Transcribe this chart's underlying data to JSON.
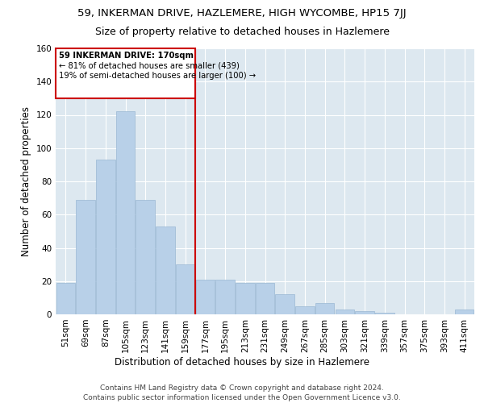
{
  "title1": "59, INKERMAN DRIVE, HAZLEMERE, HIGH WYCOMBE, HP15 7JJ",
  "title2": "Size of property relative to detached houses in Hazlemere",
  "xlabel": "Distribution of detached houses by size in Hazlemere",
  "ylabel": "Number of detached properties",
  "categories": [
    "51sqm",
    "69sqm",
    "87sqm",
    "105sqm",
    "123sqm",
    "141sqm",
    "159sqm",
    "177sqm",
    "195sqm",
    "213sqm",
    "231sqm",
    "249sqm",
    "267sqm",
    "285sqm",
    "303sqm",
    "321sqm",
    "339sqm",
    "357sqm",
    "375sqm",
    "393sqm",
    "411sqm"
  ],
  "values": [
    19,
    69,
    93,
    122,
    69,
    53,
    30,
    21,
    21,
    19,
    19,
    12,
    5,
    7,
    3,
    2,
    1,
    0,
    0,
    0,
    3
  ],
  "bar_color": "#b8d0e8",
  "bar_edge_color": "#9ab8d4",
  "vline_color": "#cc0000",
  "annotation_line1": "59 INKERMAN DRIVE: 170sqm",
  "annotation_line2": "← 81% of detached houses are smaller (439)",
  "annotation_line3": "19% of semi-detached houses are larger (100) →",
  "annotation_box_color": "#cc0000",
  "ylim": [
    0,
    160
  ],
  "yticks": [
    0,
    20,
    40,
    60,
    80,
    100,
    120,
    140,
    160
  ],
  "footer1": "Contains HM Land Registry data © Crown copyright and database right 2024.",
  "footer2": "Contains public sector information licensed under the Open Government Licence v3.0.",
  "bg_color": "#dde8f0",
  "grid_color": "#ffffff",
  "title1_fontsize": 9.5,
  "title2_fontsize": 9,
  "axis_label_fontsize": 8.5,
  "tick_fontsize": 7.5,
  "footer_fontsize": 6.5
}
